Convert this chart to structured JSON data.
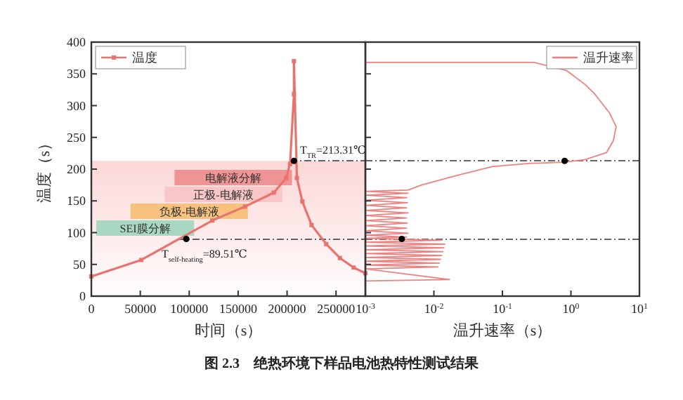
{
  "chart_data": [
    {
      "type": "line",
      "title": "图 2.3　绝热环境下样品电池热特性测试结果",
      "xlabel": "时间（s）",
      "ylabel": "温度（s）",
      "xlim": [
        0,
        280000
      ],
      "xticks": [
        0,
        50000,
        100000,
        150000,
        200000,
        250000
      ],
      "ylim": [
        0,
        400
      ],
      "yticks": [
        0,
        50,
        100,
        150,
        200,
        250,
        300,
        350,
        400
      ],
      "grid": false,
      "legend": "top left",
      "series": [
        {
          "name": "温度",
          "color": "#e8736c",
          "marker": "square",
          "x": [
            0,
            51000,
            123500,
            157000,
            186500,
            199000,
            203000,
            207000,
            207000,
            210000,
            215600,
            225000,
            240000,
            254000,
            268000,
            280000
          ],
          "values": [
            31,
            57,
            119,
            141,
            163,
            186,
            208,
            318,
            370,
            186,
            149,
            112,
            82,
            60,
            45,
            36
          ]
        },
        {
          "type": "scatter",
          "color": "#000000",
          "marker": "circle",
          "x": [
            97000,
            207000
          ],
          "values": [
            90,
            213
          ]
        }
      ],
      "bands": [
        {
          "axis": "y",
          "from": 0,
          "to": 213,
          "color": "#fbd3d3"
        },
        {
          "axis": "x",
          "from": 5000,
          "to": 105000,
          "label": "SEI膜分解",
          "color": "#a8d8c2"
        },
        {
          "axis": "x",
          "from": 40000,
          "to": 160000,
          "label": "负极-电解液",
          "color": "#f6c27e"
        },
        {
          "axis": "x",
          "from": 75000,
          "to": 195000,
          "label": "正极-电解液",
          "color": "#f8c6c6"
        },
        {
          "axis": "x",
          "from": 85000,
          "to": 205000,
          "label": "电解液分解",
          "color": "#ef9494"
        }
      ],
      "ref_lines": [
        {
          "axis": "y",
          "value": 89.51,
          "label": "T$_{self-heating}$=89.51℃",
          "color": "#333333",
          "line_style": "dashed"
        },
        {
          "axis": "y",
          "value": 213.31,
          "label": "T$_{TR}$=213.31℃",
          "color": "#333333",
          "line_style": "dashed"
        }
      ]
    },
    {
      "type": "line",
      "xlabel": "温升速率（s）",
      "log": "x",
      "xlim": [
        0.001,
        10
      ],
      "xticks": [
        {
          "value": 0.001,
          "label": "10$^{-3}$"
        },
        {
          "value": 0.01,
          "label": "10$^{-2}$"
        },
        {
          "value": 0.1,
          "label": "10$^{-1}$"
        },
        {
          "value": 1,
          "label": "10$^{0}$"
        },
        {
          "value": 10,
          "label": "10$^{1}$"
        }
      ],
      "ylim": [
        0,
        400
      ],
      "yticks": [
        0,
        50,
        100,
        150,
        200,
        250,
        300,
        350,
        400
      ],
      "tick_labels": "x",
      "grid": false,
      "legend": "top right",
      "series": [
        {
          "name": "温升速率",
          "color": "#f08080",
          "x": [
            0.001,
            0.29,
            0.87,
            1.62,
            2.24,
            3.63,
            4.57,
            4.17,
            3.31,
            1.62,
            0.81,
            0.245,
            0.071,
            0.02,
            0.0066,
            0.0042,
            0.001,
            0.0042,
            0.001,
            0.004,
            0.001,
            0.0041,
            0.001,
            0.004,
            0.001,
            0.0042,
            0.001,
            0.004,
            0.001,
            0.0041,
            0.001,
            0.004,
            0.001,
            0.0042,
            0.001,
            0.004,
            0.001,
            0.013,
            0.001,
            0.0145,
            0.001,
            0.014,
            0.001,
            0.0135,
            0.001,
            0.013,
            0.001,
            0.0125,
            0.001,
            0.012,
            0.001,
            0.0115,
            0.001,
            0.017,
            0.001
          ],
          "values": [
            368,
            368,
            355,
            333,
            318,
            289,
            267,
            245,
            226,
            215,
            211,
            209,
            204,
            189,
            175,
            167,
            165,
            162,
            159,
            155,
            151,
            147,
            143,
            139,
            135,
            131,
            127,
            123,
            119,
            115,
            111,
            107,
            103,
            99,
            96,
            93,
            91,
            88,
            85,
            82,
            79,
            76,
            73,
            70,
            67,
            64,
            61,
            58,
            55,
            52,
            49,
            46,
            43,
            26,
            24
          ]
        },
        {
          "type": "scatter",
          "color": "#000000",
          "marker": "circle",
          "x": [
            0.0034,
            0.81
          ],
          "values": [
            90,
            213
          ]
        }
      ],
      "ref_lines": [
        {
          "axis": "y",
          "value": 89.51,
          "color": "#333333",
          "line_style": "dashed"
        },
        {
          "axis": "y",
          "value": 213.31,
          "color": "#333333",
          "line_style": "dashed"
        }
      ]
    }
  ]
}
